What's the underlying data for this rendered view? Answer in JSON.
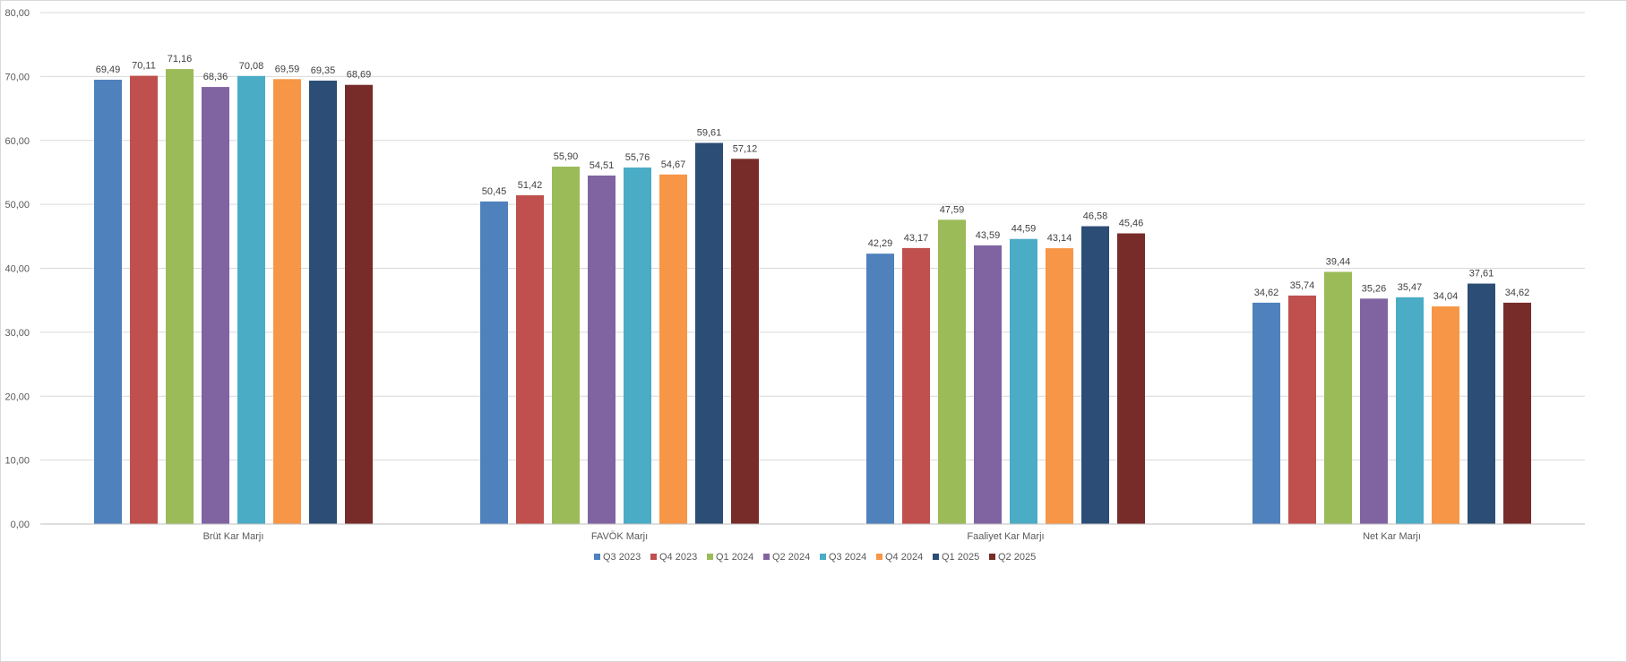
{
  "chart_data": {
    "type": "bar",
    "categories": [
      "Brüt Kar Marjı",
      "FAVÖK Marjı",
      "Faaliyet Kar Marjı",
      "Net Kar Marjı"
    ],
    "series": [
      {
        "name": "Q3 2023",
        "color": "#4f81bd",
        "values": [
          69.49,
          50.45,
          42.29,
          34.62
        ],
        "labels": [
          "69,49",
          "50,45",
          "42,29",
          "34,62"
        ]
      },
      {
        "name": "Q4 2023",
        "color": "#c0504d",
        "values": [
          70.11,
          51.42,
          43.17,
          35.74
        ],
        "labels": [
          "70,11",
          "51,42",
          "43,17",
          "35,74"
        ]
      },
      {
        "name": "Q1 2024",
        "color": "#9bbb59",
        "values": [
          71.16,
          55.9,
          47.59,
          39.44
        ],
        "labels": [
          "71,16",
          "55,90",
          "47,59",
          "39,44"
        ]
      },
      {
        "name": "Q2 2024",
        "color": "#8064a2",
        "values": [
          68.36,
          54.51,
          43.59,
          35.26
        ],
        "labels": [
          "68,36",
          "54,51",
          "43,59",
          "35,26"
        ]
      },
      {
        "name": "Q3 2024",
        "color": "#4bacc6",
        "values": [
          70.08,
          55.76,
          44.59,
          35.47
        ],
        "labels": [
          "70,08",
          "55,76",
          "44,59",
          "35,47"
        ]
      },
      {
        "name": "Q4 2024",
        "color": "#f79646",
        "values": [
          69.59,
          54.67,
          43.14,
          34.04
        ],
        "labels": [
          "69,59",
          "54,67",
          "43,14",
          "34,04"
        ]
      },
      {
        "name": "Q1 2025",
        "color": "#2c4d75",
        "values": [
          69.35,
          59.61,
          46.58,
          37.61
        ],
        "labels": [
          "69,35",
          "59,61",
          "46,58",
          "37,61"
        ]
      },
      {
        "name": "Q2 2025",
        "color": "#772c2a",
        "values": [
          68.69,
          57.12,
          45.46,
          34.62
        ],
        "labels": [
          "68,69",
          "57,12",
          "45,46",
          "34,62"
        ]
      }
    ],
    "ylim": [
      0,
      80
    ],
    "yticks": [
      "0,00",
      "10,00",
      "20,00",
      "30,00",
      "40,00",
      "50,00",
      "60,00",
      "70,00",
      "80,00"
    ],
    "grid": true,
    "legend_position": "bottom",
    "title": "",
    "xlabel": "",
    "ylabel": ""
  }
}
